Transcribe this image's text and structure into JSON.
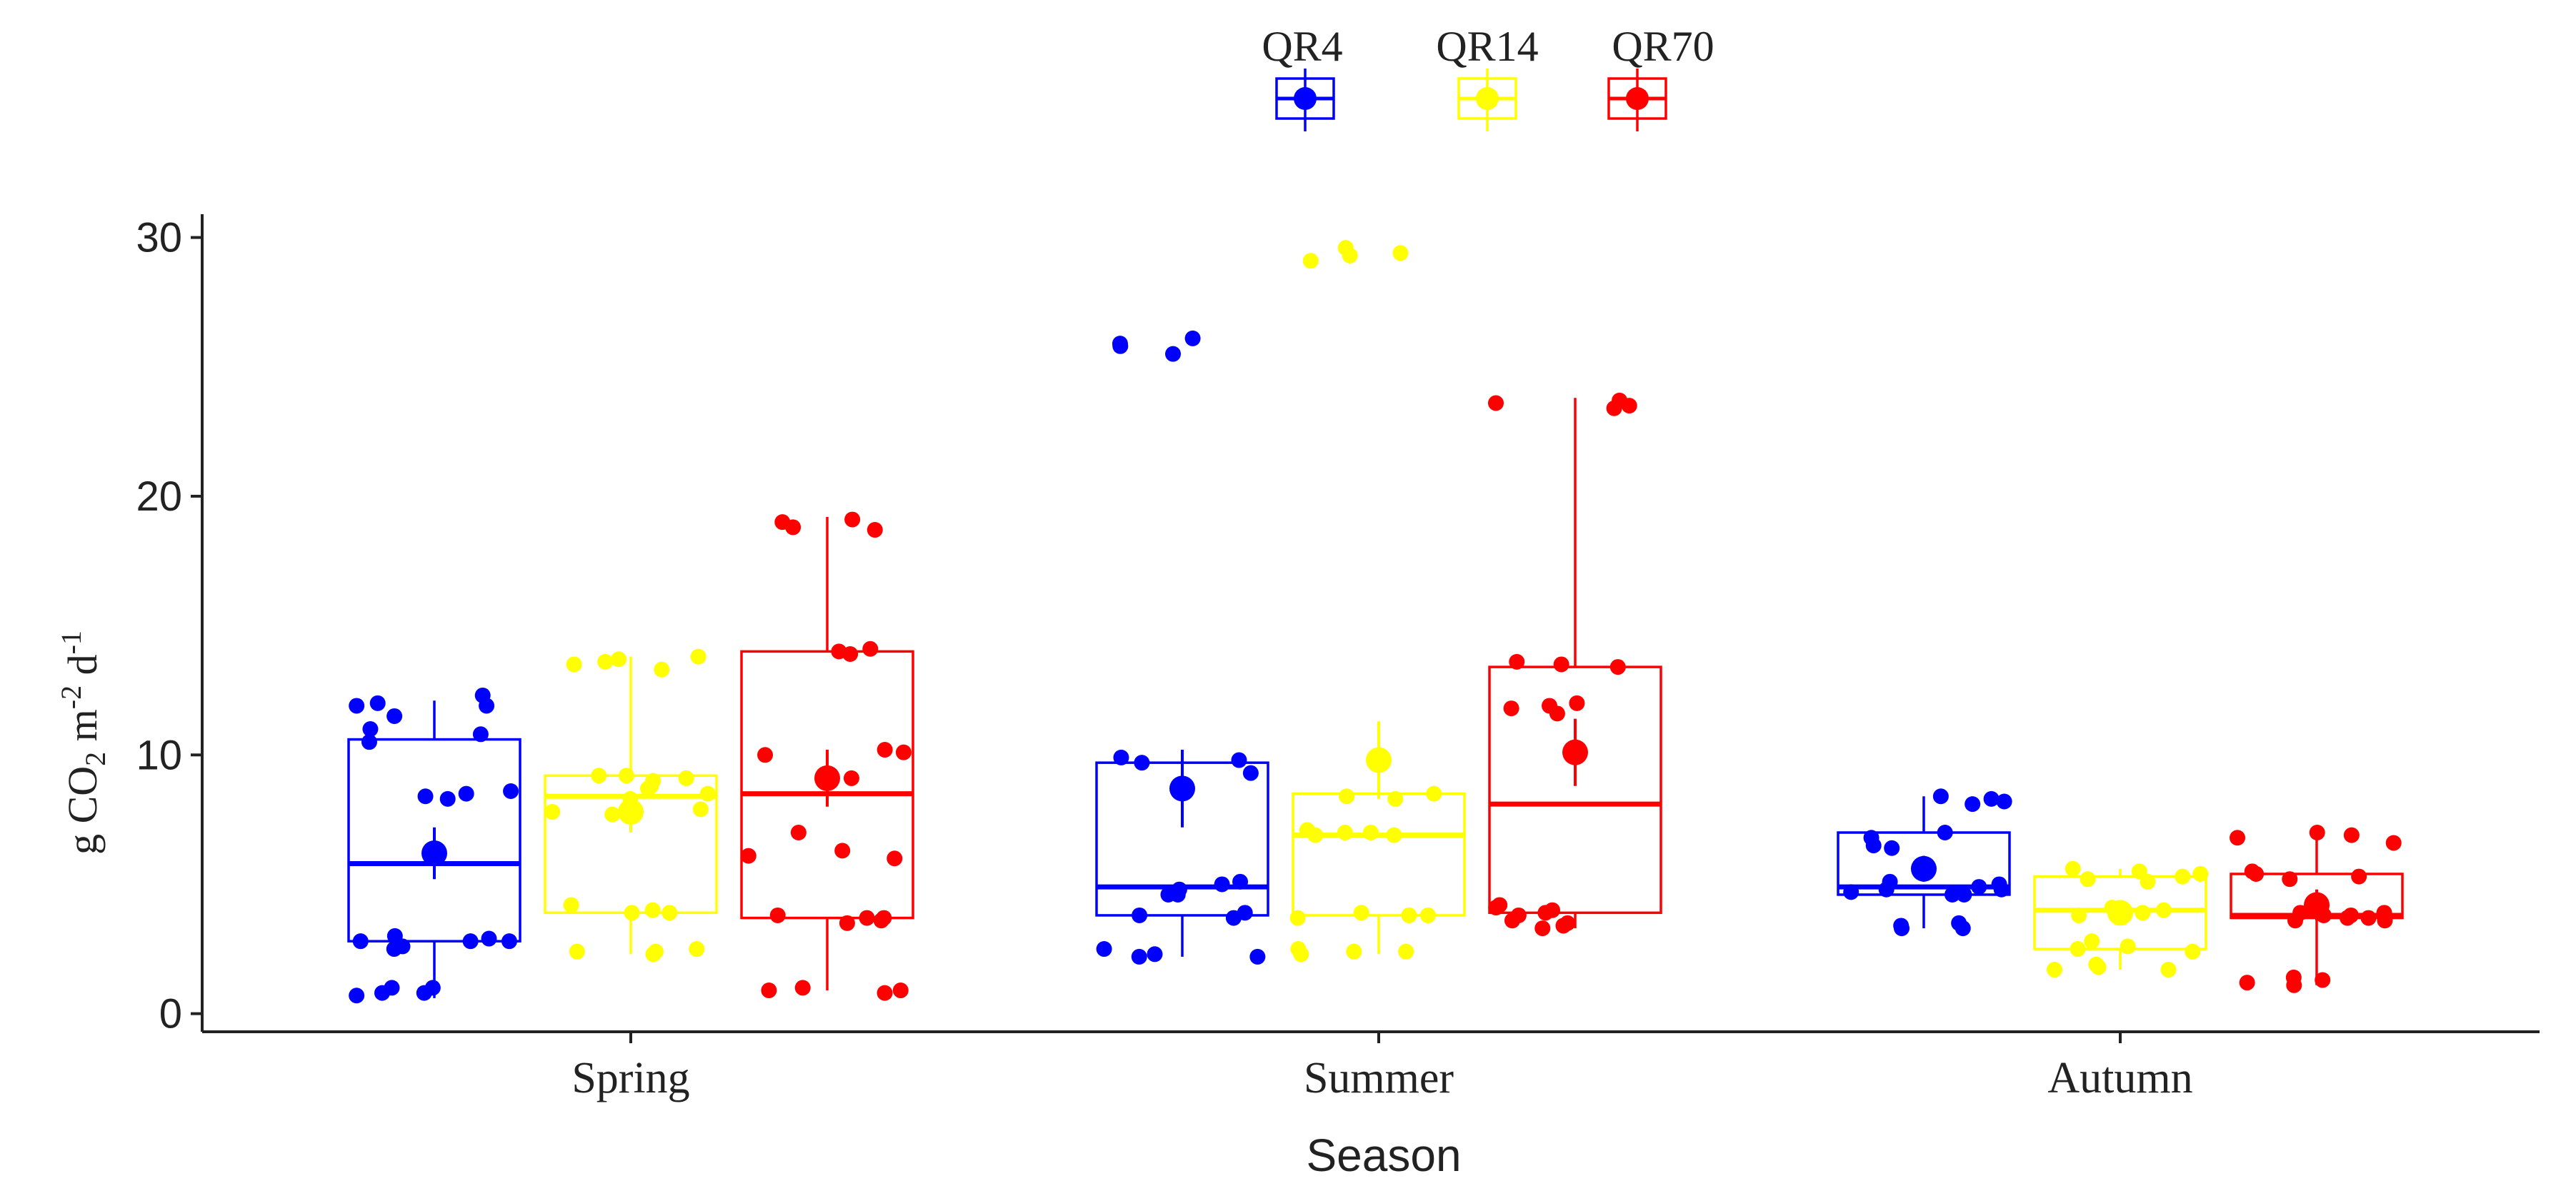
{
  "chart_data": {
    "type": "boxplot",
    "title": "",
    "xlabel": "Season",
    "ylabel": {
      "prefix": "g CO",
      "sub": "2",
      "mid1": " m",
      "sup1": "-2",
      "mid2": " d",
      "sup2": "-1"
    },
    "categories": [
      "Spring",
      "Summer",
      "Autumn"
    ],
    "ylim": [
      -0.7,
      30.9
    ],
    "yticks": [
      0,
      10,
      20,
      30
    ],
    "grid": false,
    "legend_position": "top-center",
    "series": [
      {
        "name": "QR4",
        "color": "#0000ff",
        "boxes": [
          {
            "q1": 2.8,
            "median": 5.8,
            "q3": 10.6,
            "lower": 0.6,
            "upper": 12.1,
            "mean": 6.2,
            "mean_err": 1.0
          },
          {
            "q1": 3.8,
            "median": 4.9,
            "q3": 9.7,
            "lower": 2.2,
            "upper": 9.8,
            "mean": 8.7,
            "mean_err": 1.5
          },
          {
            "q1": 4.6,
            "median": 4.9,
            "q3": 7.0,
            "lower": 3.3,
            "upper": 8.4,
            "mean": 5.6,
            "mean_err": 0.5
          }
        ],
        "points": [
          [
            0.8,
            1.0,
            1.0,
            0.7,
            0.8,
            2.8,
            2.8,
            2.5,
            3.0,
            2.6,
            2.8,
            2.9,
            8.6,
            8.4,
            8.3,
            8.5,
            10.5,
            11.0,
            11.9,
            12.0,
            12.3,
            11.5,
            11.9,
            10.8
          ],
          [
            2.2,
            2.3,
            2.5,
            2.2,
            3.7,
            3.8,
            3.9,
            4.6,
            4.8,
            5.0,
            5.1,
            4.6,
            9.7,
            9.8,
            9.3,
            9.9,
            25.8,
            26.1,
            25.9,
            25.5
          ],
          [
            3.3,
            3.4,
            3.5,
            3.3,
            4.6,
            4.7,
            4.8,
            4.9,
            5.0,
            4.6,
            6.4,
            6.8,
            7.0,
            8.2,
            8.4,
            8.1,
            8.3,
            5.1,
            4.8,
            6.5
          ]
        ]
      },
      {
        "name": "QR14",
        "color": "#ffff00",
        "boxes": [
          {
            "q1": 3.9,
            "median": 8.4,
            "q3": 9.2,
            "lower": 2.3,
            "upper": 13.8,
            "mean": 7.8,
            "mean_err": 0.8
          },
          {
            "q1": 3.8,
            "median": 6.9,
            "q3": 8.5,
            "lower": 2.3,
            "upper": 8.5,
            "mean": 9.8,
            "mean_err": 1.5
          },
          {
            "q1": 2.5,
            "median": 4.0,
            "q3": 5.3,
            "lower": 1.7,
            "upper": 5.6,
            "mean": 3.9,
            "mean_err": 0.4
          }
        ],
        "points": [
          [
            2.3,
            2.5,
            2.4,
            2.4,
            3.9,
            4.0,
            4.2,
            3.9,
            7.8,
            7.9,
            8.3,
            8.5,
            8.7,
            9.0,
            9.2,
            9.1,
            9.2,
            13.7,
            13.8,
            13.5,
            13.6,
            13.3,
            7.7,
            8.8
          ],
          [
            2.3,
            2.4,
            2.5,
            2.4,
            3.7,
            3.8,
            3.9,
            3.8,
            6.9,
            7.0,
            7.1,
            6.9,
            7.0,
            8.4,
            8.5,
            8.3,
            29.6,
            29.4,
            29.3,
            29.1
          ],
          [
            1.7,
            1.8,
            1.9,
            1.7,
            2.4,
            2.5,
            2.8,
            2.6,
            3.8,
            4.0,
            4.1,
            3.9,
            5.1,
            5.3,
            5.5,
            5.6,
            5.4,
            5.2
          ]
        ]
      },
      {
        "name": "QR70",
        "color": "#ff0000",
        "boxes": [
          {
            "q1": 3.7,
            "median": 8.5,
            "q3": 14.0,
            "lower": 0.9,
            "upper": 19.2,
            "mean": 9.1,
            "mean_err": 1.1
          },
          {
            "q1": 3.9,
            "median": 8.1,
            "q3": 13.4,
            "lower": 3.3,
            "upper": 23.8,
            "mean": 10.1,
            "mean_err": 1.3
          },
          {
            "q1": 3.7,
            "median": 3.8,
            "q3": 5.4,
            "lower": 1.1,
            "upper": 7.1,
            "mean": 4.2,
            "mean_err": 0.6
          }
        ],
        "points": [
          [
            0.9,
            0.8,
            1.0,
            3.5,
            3.7,
            3.8,
            3.6,
            6.0,
            6.3,
            6.1,
            7.0,
            9.1,
            10.0,
            10.2,
            10.1,
            14.0,
            14.1,
            13.9,
            18.8,
            18.7,
            19.0,
            19.1,
            0.9,
            3.7
          ],
          [
            3.3,
            3.4,
            3.5,
            3.6,
            3.8,
            3.9,
            4.0,
            4.2,
            11.8,
            11.9,
            12.0,
            11.6,
            13.4,
            13.5,
            13.6,
            23.4,
            23.6,
            23.7,
            23.5,
            4.1
          ],
          [
            1.1,
            1.2,
            1.4,
            1.3,
            3.6,
            3.7,
            3.8,
            3.9,
            3.7,
            3.8,
            5.3,
            5.4,
            5.5,
            6.6,
            6.8,
            7.0,
            6.9,
            3.9,
            3.6,
            5.2
          ]
        ]
      }
    ]
  }
}
